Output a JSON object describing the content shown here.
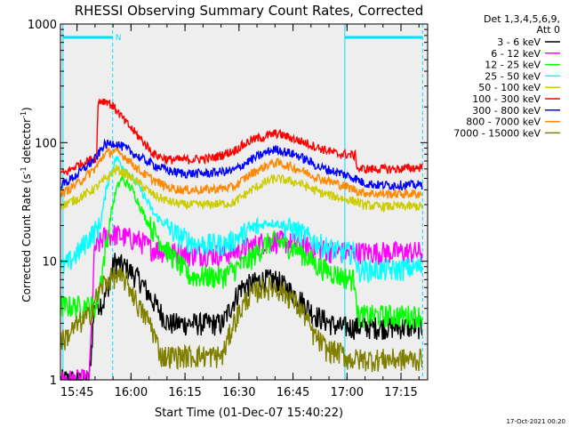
{
  "chart_data": {
    "type": "line",
    "title": "RHESSI Observing Summary Count Rates, Corrected",
    "xlabel": "Start Time (01-Dec-07 15:40:22)",
    "ylabel_pre": "Corrected Count Rate (s",
    "ylabel_sup1": "-1",
    "ylabel_mid": " detector",
    "ylabel_sup2": "-1",
    "ylabel_post": ")",
    "footer": "17-Oct-2021 00:20",
    "y_scale": "log",
    "ylim": [
      1,
      1000
    ],
    "xlim_minutes": [
      0,
      102
    ],
    "x_ticks": [
      {
        "label": "15:45",
        "minute": 4.6
      },
      {
        "label": "16:00",
        "minute": 19.6
      },
      {
        "label": "16:15",
        "minute": 34.6
      },
      {
        "label": "16:30",
        "minute": 49.6
      },
      {
        "label": "16:45",
        "minute": 64.6
      },
      {
        "label": "17:00",
        "minute": 79.6
      },
      {
        "label": "17:15",
        "minute": 94.6
      }
    ],
    "y_ticks": [
      {
        "label": "1",
        "value": 1
      },
      {
        "label": "10",
        "value": 10
      },
      {
        "label": "100",
        "value": 100
      },
      {
        "label": "1000",
        "value": 1000
      }
    ],
    "grid": false,
    "legend_position": "right",
    "legend_header": [
      "Det 1,3,4,5,6,9,",
      "Att 0"
    ],
    "attenuator_marker": "N",
    "background_color": "#eeeeee",
    "night_intervals": [
      {
        "start": 0.7,
        "end": 14.5
      },
      {
        "start": 79.0,
        "end": 100.6
      }
    ],
    "series": [
      {
        "name": "3 - 6 keV",
        "color": "#000000",
        "x": [
          0,
          8,
          9.5,
          10,
          12,
          15,
          18,
          22,
          25,
          30,
          36,
          45,
          50,
          56,
          60,
          66,
          71,
          77,
          80,
          82
        ],
        "y": [
          1,
          1,
          4.5,
          4.5,
          4.5,
          10,
          9,
          7,
          5,
          3,
          3,
          3,
          6,
          7,
          7,
          5,
          3.5,
          2.8,
          2.8,
          2.8
        ]
      },
      {
        "name": "6 - 12 keV",
        "color": "#ff00ff",
        "x": [
          0,
          8,
          9.5,
          10,
          12,
          15,
          18,
          22,
          25,
          30,
          36,
          45,
          50,
          56,
          60,
          66,
          71,
          77,
          80,
          82
        ],
        "y": [
          1,
          1,
          13,
          13,
          16,
          17,
          16,
          15,
          13,
          12,
          11.5,
          11.5,
          12.5,
          14.5,
          15,
          14,
          13,
          12,
          12,
          12
        ]
      },
      {
        "name": "12 - 25 keV",
        "color": "#00ff00",
        "x": [
          0,
          10,
          12,
          14,
          15.5,
          17,
          20,
          24,
          30,
          36,
          45,
          52,
          57,
          60,
          66,
          72,
          78,
          82,
          82.5,
          86,
          92,
          100
        ],
        "y": [
          4.2,
          4.2,
          10,
          25,
          40,
          50,
          40,
          22,
          12,
          7.5,
          7.5,
          10,
          14,
          15,
          12.5,
          9,
          7.5,
          7,
          3.5,
          3.5,
          3.5,
          3.5
        ]
      },
      {
        "name": "25 - 50 keV",
        "color": "#00ffff",
        "x": [
          0,
          1,
          5,
          8,
          11,
          13,
          15.5,
          18,
          22,
          26,
          32,
          38,
          46,
          52,
          57,
          60,
          66,
          72,
          78,
          82,
          82.5,
          86,
          92,
          100
        ],
        "y": [
          9,
          9,
          12,
          16,
          20,
          45,
          75,
          60,
          42,
          25,
          17,
          14,
          14,
          18,
          21,
          21,
          18,
          14,
          12,
          12,
          8.5,
          8.5,
          8.5,
          9
        ]
      },
      {
        "name": "50 - 100 keV",
        "color": "#cccc00",
        "x": [
          0,
          1,
          5,
          10,
          15.5,
          18,
          22,
          26,
          30,
          34,
          40,
          48,
          53,
          58,
          60,
          66,
          72,
          78,
          82,
          84,
          88,
          94,
          100
        ],
        "y": [
          30,
          30,
          34,
          42,
          60,
          55,
          45,
          36,
          32,
          30,
          30,
          31,
          40,
          48,
          50,
          46,
          38,
          34,
          32,
          30,
          29,
          29,
          29
        ]
      },
      {
        "name": "100 - 300 keV",
        "color": "#ff0000",
        "x": [
          0,
          1,
          5,
          10,
          10.5,
          13,
          15.5,
          18,
          22,
          26,
          30,
          36,
          42,
          48,
          53,
          58,
          60,
          66,
          72,
          77,
          79,
          82,
          82.5,
          88,
          94,
          100
        ],
        "y": [
          55,
          55,
          65,
          75,
          225,
          225,
          190,
          150,
          110,
          80,
          72,
          72,
          74,
          85,
          105,
          115,
          120,
          105,
          90,
          80,
          80,
          78,
          60,
          60,
          60,
          62
        ]
      },
      {
        "name": "300 - 800 keV",
        "color": "#0000ff",
        "x": [
          0,
          1,
          5,
          10,
          12,
          15,
          18,
          22,
          26,
          30,
          34,
          40,
          48,
          53,
          58,
          60,
          66,
          72,
          78,
          82,
          84,
          88,
          94,
          100
        ],
        "y": [
          45,
          45,
          55,
          75,
          95,
          100,
          90,
          75,
          65,
          58,
          55,
          55,
          58,
          72,
          85,
          88,
          78,
          62,
          55,
          50,
          46,
          44,
          44,
          44
        ]
      },
      {
        "name": "800 - 7000 keV",
        "color": "#ff8800",
        "x": [
          0,
          1,
          5,
          10,
          12,
          15,
          18,
          22,
          26,
          30,
          34,
          40,
          48,
          53,
          58,
          60,
          66,
          72,
          78,
          82,
          84,
          88,
          94,
          100
        ],
        "y": [
          38,
          38,
          46,
          62,
          80,
          85,
          76,
          58,
          48,
          42,
          40,
          40,
          42,
          55,
          66,
          68,
          60,
          50,
          44,
          40,
          38,
          37,
          37,
          37
        ]
      },
      {
        "name": "7000 - 15000 keV",
        "color": "#808000",
        "x": [
          0,
          1,
          5,
          8,
          10,
          12,
          15,
          18,
          20,
          22,
          25,
          28,
          36,
          45,
          48,
          52,
          56,
          60,
          64,
          68,
          70,
          74,
          78,
          80,
          82,
          90,
          100
        ],
        "y": [
          2.2,
          2.2,
          3,
          3.5,
          5,
          6.5,
          7.5,
          7,
          5.5,
          4,
          3,
          1.6,
          1.6,
          1.6,
          3,
          5,
          6,
          6,
          5,
          3.5,
          2.5,
          1.8,
          1.7,
          1.5,
          1.5,
          1.5,
          1.5
        ]
      }
    ]
  }
}
